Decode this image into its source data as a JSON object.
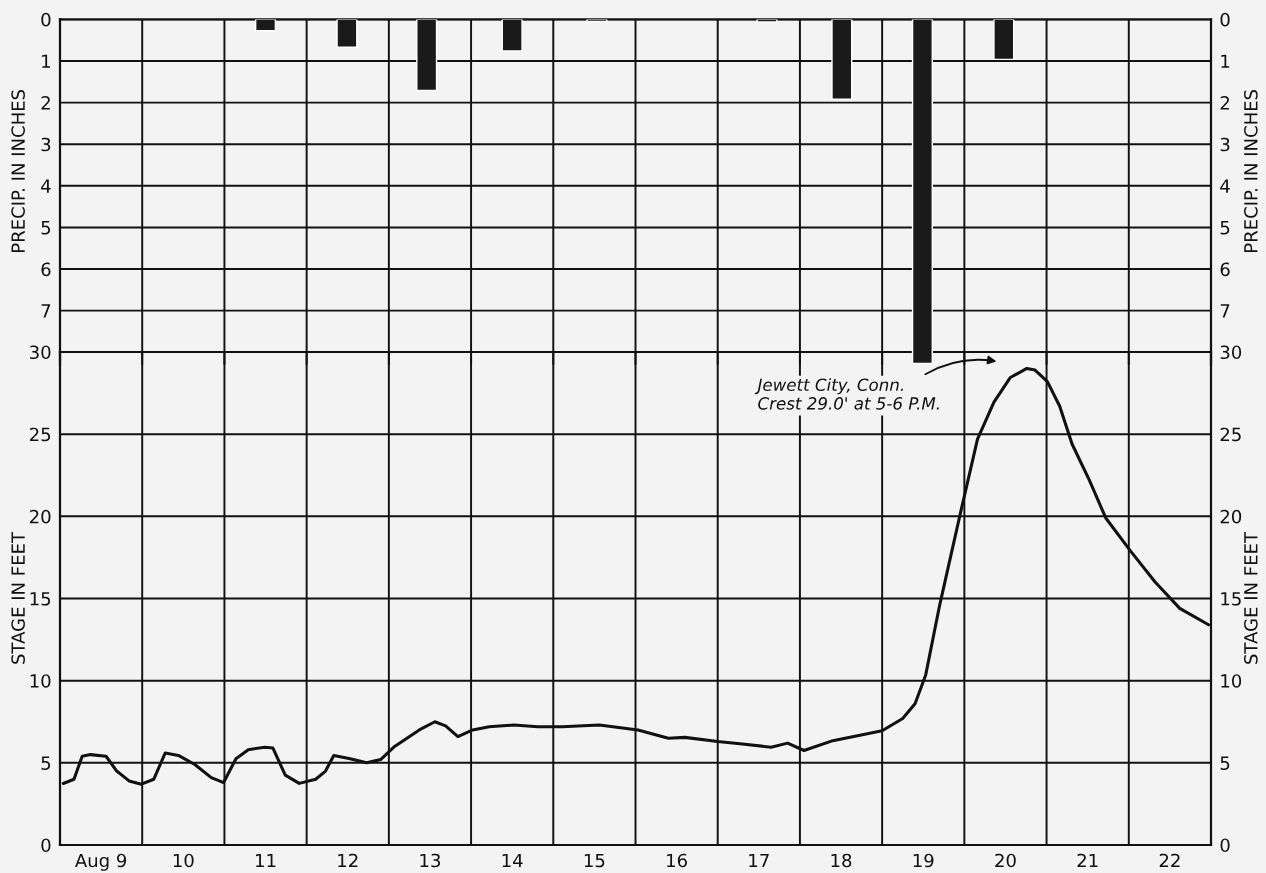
{
  "chart_data": [
    {
      "type": "bar",
      "ylabel": "PRECIP. IN INCHES",
      "y2label": "PRECIP. IN INCHES",
      "tick_labels": "y",
      "xlim": [
        9,
        23
      ],
      "xticks": [
        {
          "value": 10,
          "label": null
        },
        {
          "value": 11,
          "label": null
        },
        {
          "value": 12,
          "label": null
        },
        {
          "value": 13,
          "label": null
        },
        {
          "value": 14,
          "label": null
        },
        {
          "value": 15,
          "label": null
        },
        {
          "value": 16,
          "label": null
        },
        {
          "value": 17,
          "label": null
        },
        {
          "value": 18,
          "label": null
        },
        {
          "value": 19,
          "label": null
        },
        {
          "value": 20,
          "label": null
        },
        {
          "value": 21,
          "label": null
        },
        {
          "value": 22,
          "label": null
        }
      ],
      "ylim": [
        8.3,
        0
      ],
      "yticks": [
        0,
        1,
        2,
        3,
        4,
        5,
        6,
        7
      ],
      "y2lim": [
        8.3,
        0
      ],
      "y2ticks": [
        0,
        1,
        2,
        3,
        4,
        5,
        6,
        7
      ],
      "grid": true,
      "series": [
        {
          "color": "#1a1a1a",
          "x": [
            11.5,
            12.49,
            13.46,
            14.5,
            15.53,
            17.6,
            18.51,
            19.49,
            20.48
          ],
          "values": [
            0.27,
            0.67,
            1.71,
            0.76,
            0.05,
            0.06,
            1.92,
            8.27,
            0.96
          ]
        }
      ]
    },
    {
      "type": "line",
      "ylabel": "STAGE IN FEET",
      "y2label": "STAGE IN FEET",
      "xlim": [
        9,
        23
      ],
      "xticks": [
        {
          "value": 9.5,
          "label": "Aug 9"
        },
        {
          "value": 10.5,
          "label": "10"
        },
        {
          "value": 11.5,
          "label": "11"
        },
        {
          "value": 12.5,
          "label": "12"
        },
        {
          "value": 13.5,
          "label": "13"
        },
        {
          "value": 14.5,
          "label": "14"
        },
        {
          "value": 15.5,
          "label": "15"
        },
        {
          "value": 16.5,
          "label": "16"
        },
        {
          "value": 17.5,
          "label": "17"
        },
        {
          "value": 18.5,
          "label": "18"
        },
        {
          "value": 19.5,
          "label": "19"
        },
        {
          "value": 20.5,
          "label": "20"
        },
        {
          "value": 21.5,
          "label": "21"
        },
        {
          "value": 22.5,
          "label": "22"
        },
        {
          "value": 10,
          "label": null
        },
        {
          "value": 11,
          "label": null
        },
        {
          "value": 12,
          "label": null
        },
        {
          "value": 13,
          "label": null
        },
        {
          "value": 14,
          "label": null
        },
        {
          "value": 15,
          "label": null
        },
        {
          "value": 16,
          "label": null
        },
        {
          "value": 17,
          "label": null
        },
        {
          "value": 18,
          "label": null
        },
        {
          "value": 19,
          "label": null
        },
        {
          "value": 20,
          "label": null
        },
        {
          "value": 21,
          "label": null
        },
        {
          "value": 22,
          "label": null
        }
      ],
      "ylim": [
        0,
        30
      ],
      "yticks": [
        0,
        5,
        10,
        15,
        20,
        25,
        30
      ],
      "y2lim": [
        0,
        30
      ],
      "y2ticks": [
        0,
        5,
        10,
        15,
        20,
        25,
        30
      ],
      "grid": true,
      "series": [
        {
          "color": "#111111",
          "x": [
            9.04,
            9.17,
            9.27,
            9.37,
            9.56,
            9.69,
            9.84,
            9.99,
            10.14,
            10.28,
            10.44,
            10.64,
            10.84,
            10.99,
            11.14,
            11.29,
            11.49,
            11.59,
            11.74,
            11.91,
            12.11,
            12.23,
            12.33,
            12.53,
            12.73,
            12.9,
            13.07,
            13.37,
            13.56,
            13.69,
            13.84,
            14.02,
            14.22,
            14.52,
            14.81,
            15.11,
            15.56,
            16.03,
            16.4,
            16.6,
            17.0,
            17.3,
            17.65,
            17.85,
            18.05,
            18.4,
            18.7,
            19.0,
            19.25,
            19.4,
            19.53,
            19.7,
            19.95,
            20.16,
            20.36,
            20.56,
            20.76,
            20.86,
            21.01,
            21.16,
            21.31,
            21.52,
            21.72,
            22.02,
            22.32,
            22.62,
            22.97
          ],
          "values": [
            3.74,
            4.0,
            5.4,
            5.5,
            5.4,
            4.5,
            3.9,
            3.7,
            4.0,
            5.6,
            5.45,
            4.9,
            4.1,
            3.8,
            5.25,
            5.8,
            5.95,
            5.9,
            4.25,
            3.75,
            4.0,
            4.5,
            5.45,
            5.25,
            5.0,
            5.2,
            6.0,
            7.0,
            7.5,
            7.25,
            6.6,
            7.0,
            7.2,
            7.3,
            7.2,
            7.2,
            7.3,
            7.0,
            6.5,
            6.55,
            6.3,
            6.15,
            5.95,
            6.2,
            5.75,
            6.35,
            6.65,
            6.95,
            7.7,
            8.6,
            10.35,
            14.6,
            20.15,
            24.7,
            26.95,
            28.45,
            29.0,
            28.9,
            28.2,
            26.7,
            24.4,
            22.2,
            19.9,
            17.9,
            16.0,
            14.4,
            13.4
          ]
        }
      ],
      "annotations": [
        "Jewett City, Conn.\nCrest 29.0' at 5-6 P.M."
      ]
    }
  ]
}
